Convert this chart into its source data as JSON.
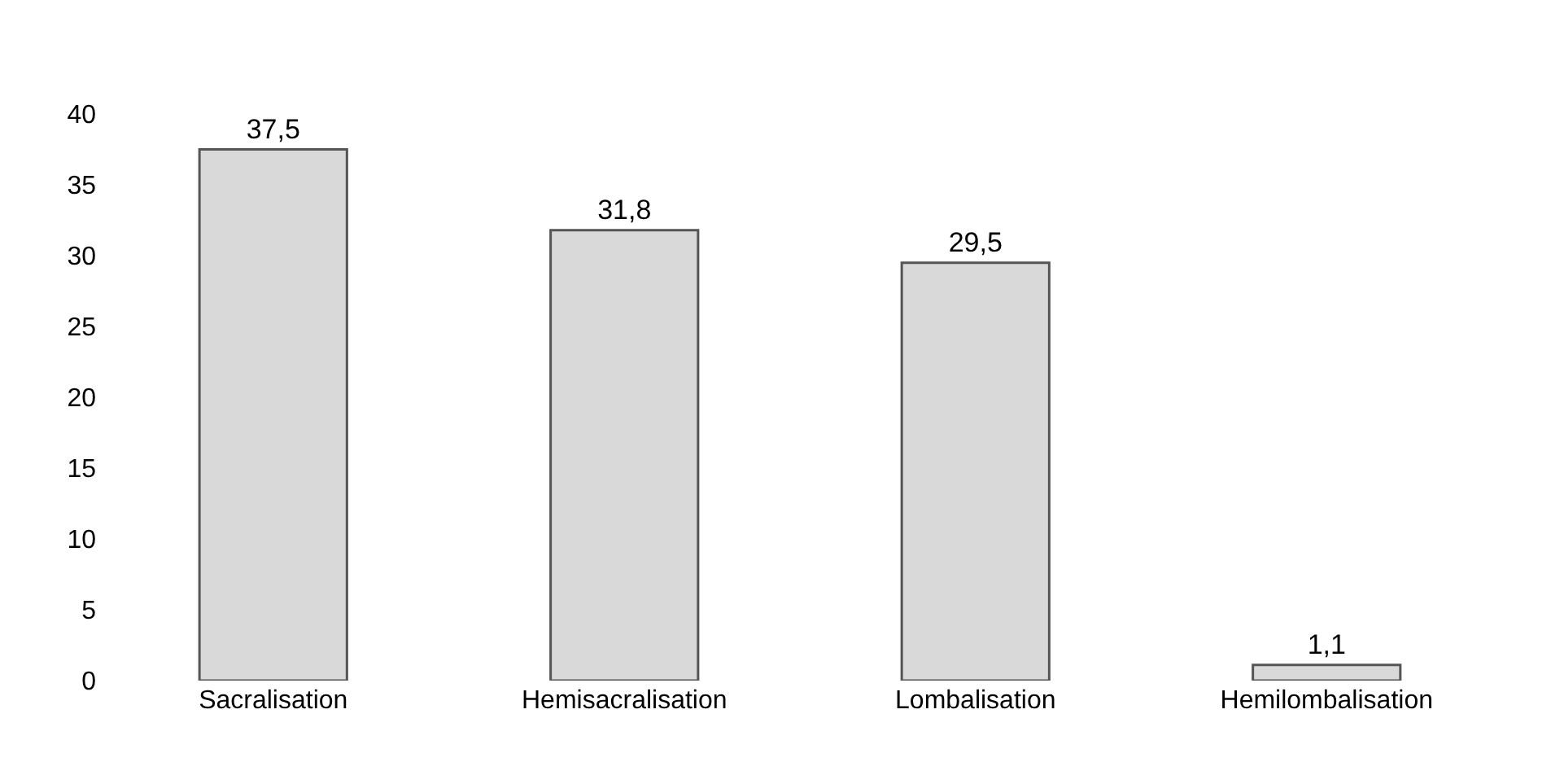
{
  "chart_data": {
    "type": "bar",
    "categories": [
      "Sacralisation",
      "Hemisacralisation",
      "Lombalisation",
      "Hemilombalisation"
    ],
    "values": [
      37.5,
      31.8,
      29.5,
      1.1
    ],
    "value_labels": [
      "37,5",
      "31,8",
      "29,5",
      "1,1"
    ],
    "color": "#d9d9d9",
    "ylim": [
      0,
      40
    ],
    "yticks": [
      0,
      5,
      10,
      15,
      20,
      25,
      30,
      35,
      40
    ]
  }
}
